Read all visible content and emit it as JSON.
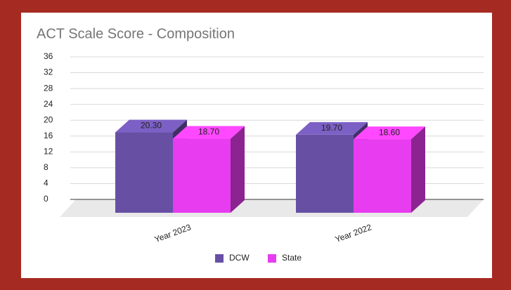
{
  "chart_data": {
    "type": "bar3d",
    "title": "ACT Scale Score - Composition",
    "categories": [
      "Year 2023",
      "Year 2022"
    ],
    "series": [
      {
        "name": "DCW",
        "color": "#6750a4",
        "values": [
          20.3,
          19.7
        ],
        "value_labels": [
          "20.30",
          "19.70"
        ]
      },
      {
        "name": "State",
        "color": "#e83cf0",
        "values": [
          18.7,
          18.6
        ],
        "value_labels": [
          "18.70",
          "18.60"
        ]
      }
    ],
    "ylim": [
      0,
      36
    ],
    "yticks": [
      0,
      4,
      8,
      12,
      16,
      20,
      24,
      28,
      32,
      36
    ],
    "grid": true,
    "legend": "bottom"
  }
}
